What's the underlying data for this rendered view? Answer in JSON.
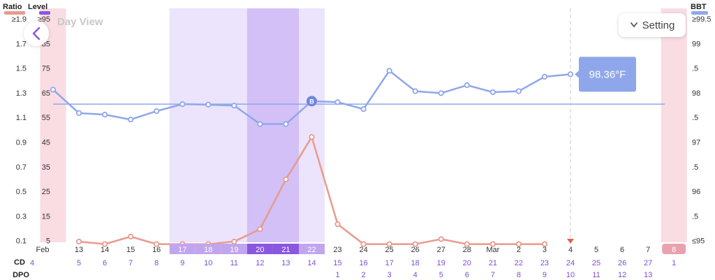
{
  "header": {
    "ratio_label": "Ratio",
    "level_label": "Level",
    "bbt_label": "BBT",
    "view_title": "Day View",
    "setting_label": "Setting",
    "colors": {
      "ratio": "#e99a8d",
      "level": "#8b56e0",
      "bbt": "#8fa7ea"
    }
  },
  "axes": {
    "ratio_ticks": [
      "≥1.9",
      "1.7",
      "1.5",
      "1.3",
      "1.1",
      "0.9",
      "0.7",
      "0.5",
      "0.3",
      "0.1"
    ],
    "level_ticks": [
      "≥95",
      "85",
      "75",
      "65",
      "55",
      "45",
      "35",
      "25",
      "15",
      "5"
    ],
    "bbt_ticks": [
      "≥99.5",
      "99",
      ".5",
      "98",
      ".5",
      "97",
      ".5",
      "96",
      ".5",
      "≤95"
    ]
  },
  "rows": {
    "cd_label": "CD",
    "dpo_label": "DPO"
  },
  "dates": [
    "Feb",
    "13",
    "14",
    "15",
    "16",
    "17",
    "18",
    "19",
    "20",
    "21",
    "22",
    "23",
    "24",
    "25",
    "26",
    "27",
    "28",
    "Mar",
    "2",
    "3",
    "4",
    "5",
    "6",
    "7",
    "8"
  ],
  "cd": [
    "4",
    "5",
    "6",
    "7",
    "8",
    "9",
    "10",
    "11",
    "12",
    "13",
    "14",
    "15",
    "16",
    "17",
    "18",
    "19",
    "20",
    "21",
    "22",
    "23",
    "24",
    "25",
    "26",
    "27",
    "1"
  ],
  "dpo": [
    "",
    "",
    "",
    "",
    "",
    "",
    "",
    "",
    "",
    "",
    "",
    "1",
    "2",
    "3",
    "4",
    "5",
    "6",
    "7",
    "8",
    "9",
    "10",
    "11",
    "12",
    "13",
    ""
  ],
  "callout": {
    "text": "98.36°F",
    "marker": "B"
  },
  "chart_data": {
    "type": "line",
    "x_dates": [
      "Feb 12",
      "Feb 13",
      "Feb 14",
      "Feb 15",
      "Feb 16",
      "Feb 17",
      "Feb 18",
      "Feb 19",
      "Feb 20",
      "Feb 21",
      "Feb 22",
      "Feb 23",
      "Feb 24",
      "Feb 25",
      "Feb 26",
      "Feb 27",
      "Feb 28",
      "Mar 1",
      "Mar 2",
      "Mar 3",
      "Mar 4",
      "Mar 5",
      "Mar 6",
      "Mar 7",
      "Mar 8"
    ],
    "series": [
      {
        "name": "BBT",
        "axis": "right",
        "unit": "°F",
        "values": [
          98.05,
          97.58,
          97.55,
          97.45,
          97.62,
          97.76,
          97.75,
          97.73,
          97.36,
          97.36,
          97.82,
          97.8,
          97.66,
          98.43,
          98.02,
          97.98,
          98.14,
          98.0,
          98.02,
          98.31,
          98.36,
          null,
          null,
          null,
          null
        ]
      },
      {
        "name": "Level",
        "axis": "left",
        "values": [
          null,
          5,
          4,
          7,
          4,
          4,
          4,
          5,
          10,
          30,
          47,
          12,
          4,
          4,
          4,
          6,
          4,
          4,
          4,
          4,
          null,
          null,
          null,
          null,
          null
        ]
      }
    ],
    "coverline": 97.76,
    "y_ratio_range": [
      0.1,
      1.9
    ],
    "y_level_range": [
      5,
      95
    ],
    "y_bbt_range": [
      95,
      99.5
    ],
    "fertile_window": [
      "Feb 17",
      "Feb 22"
    ],
    "peak_days": [
      "Feb 20",
      "Feb 21"
    ],
    "period_days": [
      "Feb 12",
      "Mar 8"
    ],
    "today": "Mar 4",
    "grid": false,
    "legend": "top"
  }
}
